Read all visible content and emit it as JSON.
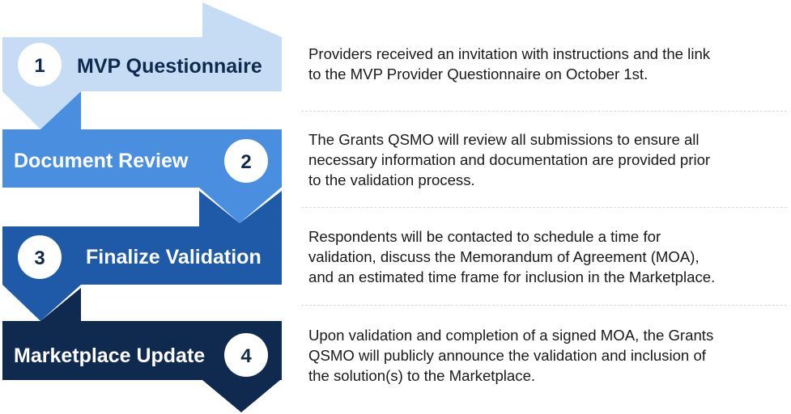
{
  "steps": [
    {
      "number": "1",
      "label": "MVP Questionnaire",
      "color": "#c5dcf4",
      "label_color": "#0f2a4e",
      "description": [
        "Providers received an invitation with instructions and the link",
        "to the MVP Provider Questionnaire on October 1st."
      ]
    },
    {
      "number": "2",
      "label": "Document Review",
      "color": "#4a8ee0",
      "label_color": "#ffffff",
      "description": [
        "The Grants QSMO will review all submissions to ensure all",
        "necessary information and documentation are provided prior",
        "to the validation process."
      ]
    },
    {
      "number": "3",
      "label": "Finalize Validation",
      "color": "#1e5aa8",
      "label_color": "#ffffff",
      "description": [
        "Respondents will be contacted to schedule a time for",
        "validation, discuss the Memorandum of Agreement (MOA),",
        "and an estimated time frame for inclusion in the Marketplace."
      ]
    },
    {
      "number": "4",
      "label": "Marketplace Update",
      "color": "#0f2a4e",
      "label_color": "#ffffff",
      "description": [
        "Upon validation and completion of a signed MOA, the Grants",
        "QSMO will publicly announce the validation and inclusion of",
        "the solution(s) to the Marketplace."
      ]
    }
  ]
}
